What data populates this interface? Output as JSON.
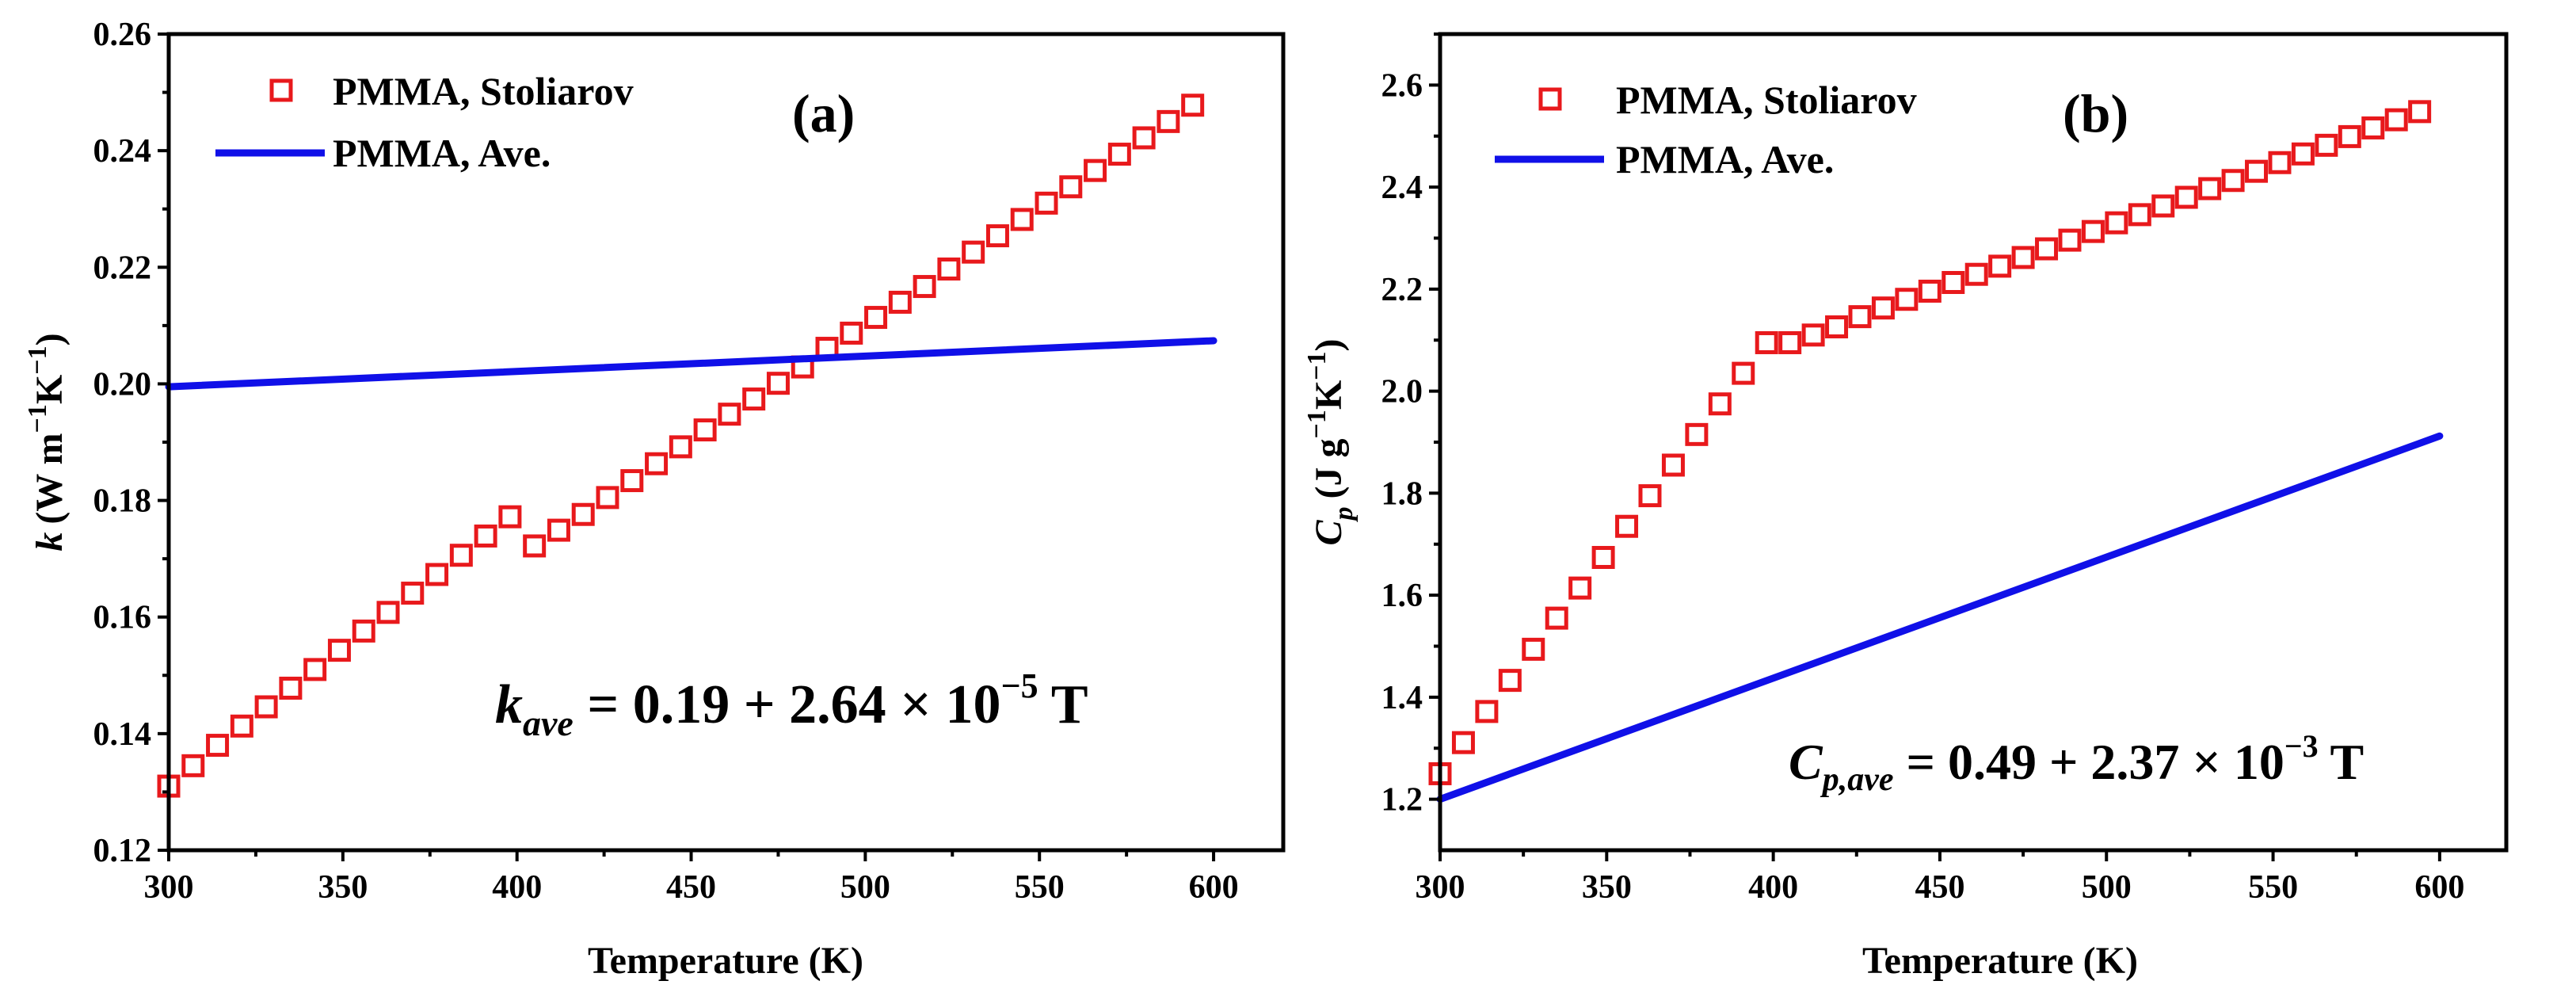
{
  "chart_data": [
    {
      "type": "scatter",
      "panel_label": "(a)",
      "xlabel": "Temperature (K)",
      "ylabel": {
        "symbol": "k",
        "rest": "(W m",
        "sup1": "−1",
        "mid": "K",
        "sup2": "−1",
        "end": ")"
      },
      "xlim": [
        300,
        620
      ],
      "ylim": [
        0.12,
        0.26
      ],
      "xticks": [
        "300",
        "350",
        "400",
        "450",
        "500",
        "550",
        "600"
      ],
      "yticks": [
        "0.12",
        "0.14",
        "0.16",
        "0.18",
        "0.20",
        "0.22",
        "0.24",
        "0.26"
      ],
      "legend": [
        "PMMA, Stoliarov",
        "PMMA, Ave."
      ],
      "equation": {
        "lhs": "k",
        "sub": "ave",
        "rhs": " = 0.19 + 2.64 × 10",
        "exp": "−5",
        "tail": " T"
      },
      "series": [
        {
          "name": "PMMA, Stoliarov",
          "marker": "square-open",
          "color": "#e8191c",
          "x": [
            300,
            307,
            314,
            321,
            328,
            335,
            342,
            349,
            356,
            363,
            370,
            377,
            384,
            391,
            398,
            405,
            412,
            419,
            426,
            433,
            440,
            447,
            454,
            461,
            468,
            475,
            482,
            489,
            496,
            503,
            510,
            517,
            524,
            531,
            538,
            545,
            552,
            559,
            566,
            573,
            580,
            587,
            594
          ],
          "y": [
            0.131,
            0.1345,
            0.138,
            0.1413,
            0.1446,
            0.1478,
            0.151,
            0.1543,
            0.1576,
            0.1608,
            0.1641,
            0.1673,
            0.1706,
            0.1739,
            0.1772,
            0.1722,
            0.1749,
            0.1776,
            0.1805,
            0.1834,
            0.1863,
            0.1892,
            0.1921,
            0.1948,
            0.1974,
            0.2001,
            0.2029,
            0.2061,
            0.2087,
            0.2114,
            0.214,
            0.2167,
            0.2197,
            0.2226,
            0.2254,
            0.2282,
            0.231,
            0.2338,
            0.2366,
            0.2394,
            0.2422,
            0.245,
            0.2478
          ]
        },
        {
          "name": "PMMA, Ave.",
          "type": "line",
          "color": "#1010e8",
          "x": [
            300,
            600
          ],
          "y": [
            0.1995,
            0.2074
          ]
        }
      ]
    },
    {
      "type": "scatter",
      "panel_label": "(b)",
      "xlabel": "Temperature (K)",
      "ylabel": {
        "symbol": "C",
        "sub": "p",
        "rest": "(J g",
        "sup1": "−1",
        "mid": "K",
        "sup2": "−1",
        "end": ")"
      },
      "xlim": [
        300,
        620
      ],
      "ylim": [
        1.1,
        2.7
      ],
      "xticks": [
        "300",
        "350",
        "400",
        "450",
        "500",
        "550",
        "600"
      ],
      "yticks": [
        "1.2",
        "1.4",
        "1.6",
        "1.8",
        "2.0",
        "2.2",
        "2.4",
        "2.6"
      ],
      "legend": [
        "PMMA, Stoliarov",
        "PMMA, Ave."
      ],
      "equation": {
        "lhs": "C",
        "sub": "p,ave",
        "rhs": " = 0.49 + 2.37 × 10",
        "exp": "−3",
        "tail": " T"
      },
      "series": [
        {
          "name": "PMMA, Stoliarov",
          "marker": "square-open",
          "color": "#e8191c",
          "x": [
            300,
            307,
            314,
            321,
            328,
            335,
            342,
            349,
            356,
            363,
            370,
            377,
            384,
            391,
            398,
            405,
            412,
            419,
            426,
            433,
            440,
            447,
            454,
            461,
            468,
            475,
            482,
            489,
            496,
            503,
            510,
            517,
            524,
            531,
            538,
            545,
            552,
            559,
            566,
            573,
            580,
            587,
            594
          ],
          "y": [
            1.25,
            1.311,
            1.372,
            1.433,
            1.494,
            1.555,
            1.614,
            1.674,
            1.735,
            1.795,
            1.855,
            1.915,
            1.975,
            2.035,
            2.095,
            2.095,
            2.11,
            2.126,
            2.146,
            2.163,
            2.18,
            2.196,
            2.213,
            2.229,
            2.245,
            2.262,
            2.279,
            2.296,
            2.313,
            2.33,
            2.346,
            2.363,
            2.38,
            2.397,
            2.413,
            2.431,
            2.448,
            2.465,
            2.482,
            2.499,
            2.516,
            2.532,
            2.548
          ]
        },
        {
          "name": "PMMA, Ave.",
          "type": "line",
          "color": "#1010e8",
          "x": [
            300,
            600
          ],
          "y": [
            1.2,
            1.912
          ]
        }
      ]
    }
  ]
}
